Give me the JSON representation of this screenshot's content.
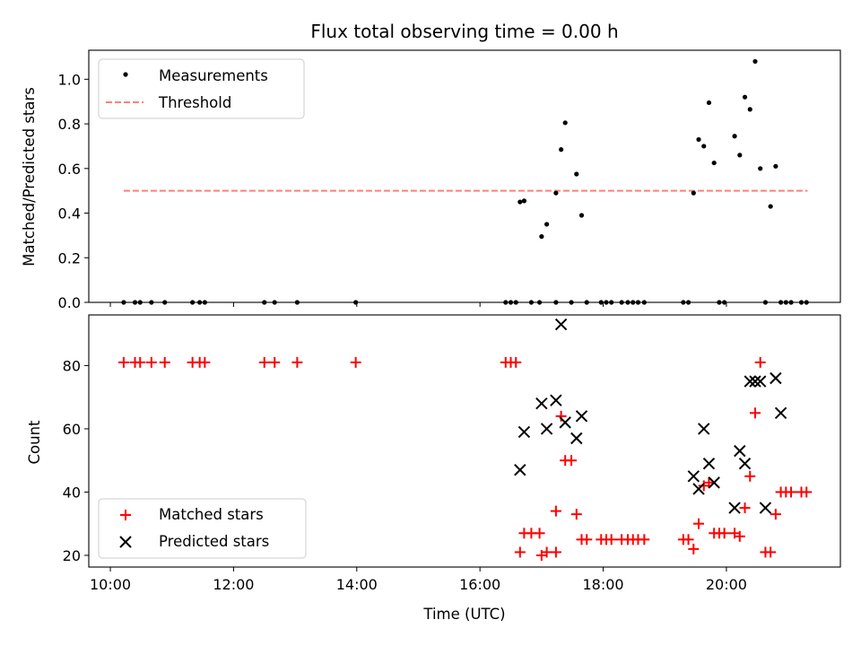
{
  "chart_data": [
    {
      "type": "scatter",
      "title": "Flux total observing time = 0.00 h",
      "ylabel": "Matched/Predicted stars",
      "xlabel": "",
      "ylim": [
        0,
        1.13
      ],
      "yticks": [
        "0.0",
        "0.2",
        "0.4",
        "0.6",
        "0.8",
        "1.0"
      ],
      "x_range": [
        "09:39",
        "21:51"
      ],
      "legend_position": "upper-left",
      "series": [
        {
          "name": "Measurements",
          "color": "#000000",
          "marker": "dot",
          "points": [
            [
              "10:13",
              0
            ],
            [
              "10:24",
              0
            ],
            [
              "10:29",
              0
            ],
            [
              "10:40",
              0
            ],
            [
              "10:53",
              0
            ],
            [
              "11:20",
              0
            ],
            [
              "11:27",
              0
            ],
            [
              "11:32",
              0
            ],
            [
              "12:30",
              0
            ],
            [
              "12:40",
              0
            ],
            [
              "13:02",
              0
            ],
            [
              "13:59",
              0
            ],
            [
              "16:25",
              0
            ],
            [
              "16:30",
              0
            ],
            [
              "16:35",
              0
            ],
            [
              "16:39",
              0.45
            ],
            [
              "16:43",
              0.455
            ],
            [
              "16:50",
              0
            ],
            [
              "16:58",
              0
            ],
            [
              "17:00",
              0.295
            ],
            [
              "17:05",
              0.35
            ],
            [
              "17:14",
              0.49
            ],
            [
              "17:14",
              0
            ],
            [
              "17:19",
              0.685
            ],
            [
              "17:23",
              0.805
            ],
            [
              "17:29",
              0
            ],
            [
              "17:34",
              0.575
            ],
            [
              "17:39",
              0.39
            ],
            [
              "17:44",
              0
            ],
            [
              "17:58",
              0
            ],
            [
              "18:03",
              0
            ],
            [
              "18:08",
              0
            ],
            [
              "18:18",
              0
            ],
            [
              "18:24",
              0
            ],
            [
              "18:29",
              0
            ],
            [
              "18:34",
              0
            ],
            [
              "18:40",
              0
            ],
            [
              "19:18",
              0
            ],
            [
              "19:23",
              0
            ],
            [
              "19:28",
              0.49
            ],
            [
              "19:33",
              0.73
            ],
            [
              "19:38",
              0.7
            ],
            [
              "19:43",
              0.895
            ],
            [
              "19:48",
              0.625
            ],
            [
              "19:53",
              0
            ],
            [
              "19:58",
              0
            ],
            [
              "20:08",
              0.745
            ],
            [
              "20:13",
              0.66
            ],
            [
              "20:18",
              0.92
            ],
            [
              "20:23",
              0.865
            ],
            [
              "20:28",
              1.08
            ],
            [
              "20:33",
              0.6
            ],
            [
              "20:38",
              0
            ],
            [
              "20:43",
              0.43
            ],
            [
              "20:48",
              0.61
            ],
            [
              "20:53",
              0
            ],
            [
              "20:58",
              0
            ],
            [
              "21:03",
              0
            ],
            [
              "21:13",
              0
            ],
            [
              "21:18",
              0
            ]
          ]
        },
        {
          "name": "Threshold",
          "color": "#ff7f7f",
          "style": "dashed",
          "points": [
            [
              "10:13",
              0.5
            ],
            [
              "21:19",
              0.5
            ]
          ]
        }
      ]
    },
    {
      "type": "scatter",
      "title": "",
      "ylabel": "Count",
      "xlabel": "Time (UTC)",
      "ylim": [
        16.3,
        96
      ],
      "yticks": [
        "20",
        "40",
        "60",
        "80"
      ],
      "x_range": [
        "09:39",
        "21:51"
      ],
      "xticks": [
        "10:00",
        "12:00",
        "14:00",
        "16:00",
        "18:00",
        "20:00"
      ],
      "legend_position": "lower-left",
      "series": [
        {
          "name": "Matched stars",
          "color": "#ff0000",
          "marker": "plus",
          "points": [
            [
              "10:13",
              81
            ],
            [
              "10:24",
              81
            ],
            [
              "10:29",
              81
            ],
            [
              "10:40",
              81
            ],
            [
              "10:53",
              81
            ],
            [
              "11:20",
              81
            ],
            [
              "11:27",
              81
            ],
            [
              "11:32",
              81
            ],
            [
              "12:30",
              81
            ],
            [
              "12:40",
              81
            ],
            [
              "13:02",
              81
            ],
            [
              "13:59",
              81
            ],
            [
              "16:25",
              81
            ],
            [
              "16:30",
              81
            ],
            [
              "16:35",
              81
            ],
            [
              "16:39",
              21
            ],
            [
              "16:43",
              27
            ],
            [
              "16:50",
              27
            ],
            [
              "16:58",
              27
            ],
            [
              "17:00",
              20
            ],
            [
              "17:05",
              21
            ],
            [
              "17:14",
              21
            ],
            [
              "17:14",
              34
            ],
            [
              "17:19",
              64
            ],
            [
              "17:23",
              50
            ],
            [
              "17:29",
              50
            ],
            [
              "17:34",
              33
            ],
            [
              "17:39",
              25
            ],
            [
              "17:44",
              25
            ],
            [
              "17:58",
              25
            ],
            [
              "18:03",
              25
            ],
            [
              "18:08",
              25
            ],
            [
              "18:18",
              25
            ],
            [
              "18:24",
              25
            ],
            [
              "18:29",
              25
            ],
            [
              "18:34",
              25
            ],
            [
              "18:40",
              25
            ],
            [
              "19:18",
              25
            ],
            [
              "19:23",
              25
            ],
            [
              "19:28",
              22
            ],
            [
              "19:33",
              30
            ],
            [
              "19:38",
              42
            ],
            [
              "19:43",
              43
            ],
            [
              "19:48",
              27
            ],
            [
              "19:53",
              27
            ],
            [
              "19:58",
              27
            ],
            [
              "20:08",
              27
            ],
            [
              "20:13",
              26
            ],
            [
              "20:18",
              35
            ],
            [
              "20:23",
              45
            ],
            [
              "20:28",
              65
            ],
            [
              "20:33",
              81
            ],
            [
              "20:38",
              21
            ],
            [
              "20:43",
              21
            ],
            [
              "20:48",
              33
            ],
            [
              "20:53",
              40
            ],
            [
              "20:58",
              40
            ],
            [
              "21:03",
              40
            ],
            [
              "21:13",
              40
            ],
            [
              "21:18",
              40
            ]
          ]
        },
        {
          "name": "Predicted stars",
          "color": "#000000",
          "marker": "x",
          "points": [
            [
              "16:39",
              47
            ],
            [
              "16:43",
              59
            ],
            [
              "17:00",
              68
            ],
            [
              "17:05",
              60
            ],
            [
              "17:14",
              69
            ],
            [
              "17:19",
              93
            ],
            [
              "17:23",
              62
            ],
            [
              "17:34",
              57
            ],
            [
              "17:39",
              64
            ],
            [
              "19:28",
              45
            ],
            [
              "19:33",
              41
            ],
            [
              "19:38",
              60
            ],
            [
              "19:43",
              49
            ],
            [
              "19:48",
              43
            ],
            [
              "20:08",
              35
            ],
            [
              "20:13",
              53
            ],
            [
              "20:18",
              49
            ],
            [
              "20:23",
              75
            ],
            [
              "20:28",
              75
            ],
            [
              "20:33",
              75
            ],
            [
              "20:38",
              35
            ],
            [
              "20:48",
              76
            ],
            [
              "20:53",
              65
            ]
          ]
        }
      ]
    }
  ]
}
